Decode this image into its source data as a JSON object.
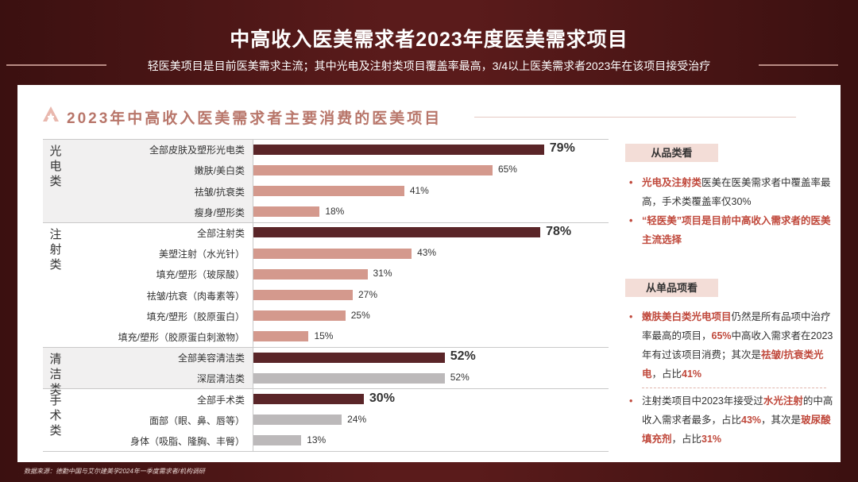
{
  "header": {
    "title": "中高收入医美需求者2023年度医美需求项目",
    "subtitle": "轻医美项目是目前医美需求主流；其中光电及注射类项目覆盖率最高，3/4以上医美需求者2023年在该项目接受治疗"
  },
  "panel": {
    "title": "2023年中高收入医美需求者主要消费的医美项目"
  },
  "colors": {
    "dark": "#5a2528",
    "pink": "#d4998d",
    "grey": "#bcb9ba",
    "highlight": "#c0483b"
  },
  "chart_data": {
    "type": "bar",
    "orientation": "horizontal",
    "unit": "%",
    "xlim": [
      0,
      100
    ],
    "groups": [
      {
        "name": "光电类",
        "items": [
          {
            "label": "全部皮肤及塑形光电类",
            "value": 79,
            "display": "79%",
            "style": "dark"
          },
          {
            "label": "嫩肤/美白类",
            "value": 65,
            "display": "65%",
            "style": "pink"
          },
          {
            "label": "祛皱/抗衰类",
            "value": 41,
            "display": "41%",
            "style": "pink"
          },
          {
            "label": "瘦身/塑形类",
            "value": 18,
            "display": "18%",
            "style": "pink"
          }
        ]
      },
      {
        "name": "注射类",
        "items": [
          {
            "label": "全部注射类",
            "value": 78,
            "display": "78%",
            "style": "dark"
          },
          {
            "label": "美塑注射（水光针）",
            "value": 43,
            "display": "43%",
            "style": "pink"
          },
          {
            "label": "填充/塑形（玻尿酸）",
            "value": 31,
            "display": "31%",
            "style": "pink"
          },
          {
            "label": "祛皱/抗衰（肉毒素等）",
            "value": 27,
            "display": "27%",
            "style": "pink"
          },
          {
            "label": "填充/塑形（胶原蛋白）",
            "value": 25,
            "display": "25%",
            "style": "pink"
          },
          {
            "label": "填充/塑形（胶原蛋白刺激物）",
            "value": 15,
            "display": "15%",
            "style": "pink"
          }
        ]
      },
      {
        "name": "清洁类",
        "items": [
          {
            "label": "全部美容清洁类",
            "value": 52,
            "display": "52%",
            "style": "dark"
          },
          {
            "label": "深层清洁类",
            "value": 52,
            "display": "52%",
            "style": "grey"
          }
        ]
      },
      {
        "name": "手术类",
        "items": [
          {
            "label": "全部手术类",
            "value": 30,
            "display": "30%",
            "style": "dark"
          },
          {
            "label": "面部（眼、鼻、唇等）",
            "value": 24,
            "display": "24%",
            "style": "grey"
          },
          {
            "label": "身体（吸脂、隆胸、丰臀）",
            "value": 13,
            "display": "13%",
            "style": "grey"
          }
        ]
      }
    ]
  },
  "sidebar": {
    "section1_tag": "从品类看",
    "s1p1_hl": "光电及注射类",
    "s1p1_rest": "医美在医美需求者中覆盖率最高，手术类覆盖率仅30%",
    "s1p2": "“轻医美”项目是目前中高收入需求者的医美主流选择",
    "section2_tag": "从单品项看",
    "s2p1_a": "嫩肤美白类光电项目",
    "s2p1_b": "仍然是所有品项中治疗率最高的项目，",
    "s2p1_c": "65%",
    "s2p1_d": "中高收入需求者在2023年有过该项目消费；其次是",
    "s2p1_e": "祛皱/抗衰类光电",
    "s2p1_f": "，占比",
    "s2p1_g": "41%",
    "s2p2_a": "注射类项目中2023年接受过",
    "s2p2_b": "水光注射",
    "s2p2_c": "的中高收入需求者最多，占比",
    "s2p2_d": "43%",
    "s2p2_e": "，其次是",
    "s2p2_f": "玻尿酸填充剂",
    "s2p2_g": "，占比",
    "s2p2_h": "31%",
    "bullet": "•"
  },
  "footer": {
    "source": "数据来源：德勤中国与艾尔建美学2024年一季度需求者/机构调研"
  }
}
